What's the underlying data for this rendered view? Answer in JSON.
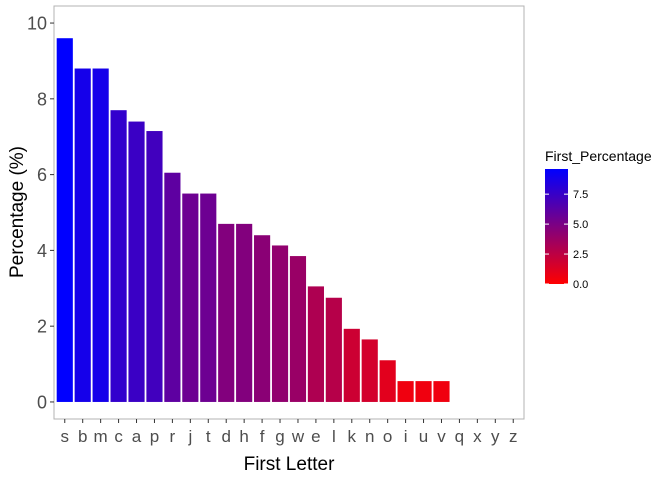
{
  "chart_data": {
    "type": "bar",
    "title": "",
    "xlabel": "First Letter",
    "ylabel": "Percentage (%)",
    "categories": [
      "s",
      "b",
      "m",
      "c",
      "a",
      "p",
      "r",
      "j",
      "t",
      "d",
      "h",
      "f",
      "g",
      "w",
      "e",
      "l",
      "k",
      "n",
      "o",
      "i",
      "u",
      "v",
      "q",
      "x",
      "y",
      "z"
    ],
    "values": [
      9.6,
      8.8,
      8.8,
      7.7,
      7.4,
      7.15,
      6.05,
      5.5,
      5.5,
      4.7,
      4.7,
      4.4,
      4.13,
      3.85,
      3.05,
      2.75,
      1.93,
      1.65,
      1.1,
      0.55,
      0.55,
      0.55,
      0,
      0,
      0,
      0
    ],
    "ylim": [
      -0.45,
      10.45
    ],
    "y_ticks": [
      "0",
      "2",
      "4",
      "6",
      "8",
      "10"
    ],
    "y_tick_values": [
      0,
      2,
      4,
      6,
      8,
      10
    ],
    "grid": false,
    "legend": {
      "title": "First_Percentage",
      "position": "right",
      "labels": [
        "7.5",
        "5.0",
        "2.5",
        "0.0"
      ],
      "label_values": [
        7.5,
        5.0,
        2.5,
        0.0
      ],
      "range": [
        0,
        9.6
      ],
      "color_low": "#ff0000",
      "color_high": "#0000ff"
    },
    "colors": {
      "panel_border": "#b3b3b3",
      "tick": "#333333"
    }
  }
}
